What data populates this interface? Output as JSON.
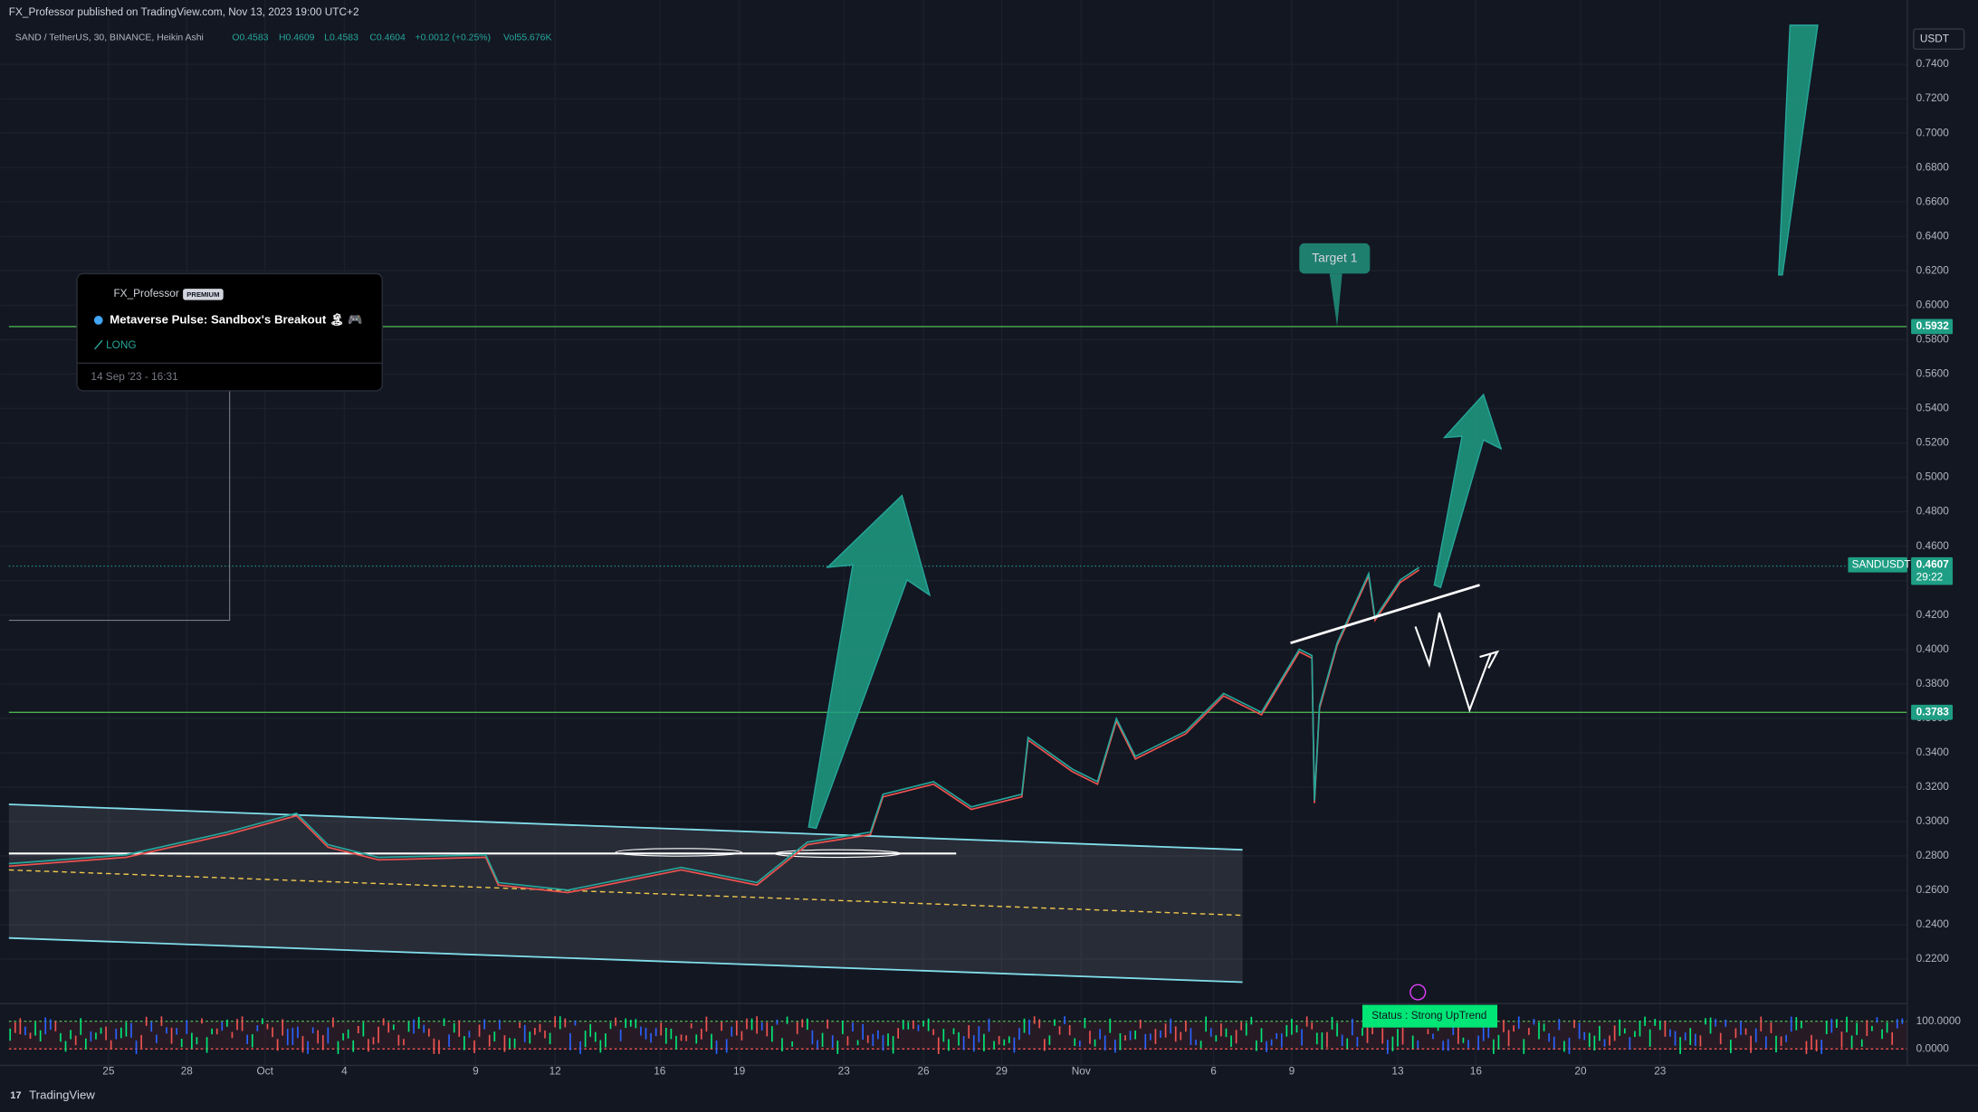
{
  "header": {
    "publisher": "FX_Professor published on TradingView.com, Nov 13, 2023 19:00 UTC+2"
  },
  "legend": {
    "symbol": "SAND / TetherUS, 30, BINANCE, Heikin Ashi",
    "open": "O0.4583",
    "high": "H0.4609",
    "low": "L0.4583",
    "close": "C0.4604",
    "change": "+0.0012 (+0.25%)",
    "volume": "Vol55.676K"
  },
  "price_axis": {
    "currency": "USDT",
    "labels": [
      "0.7400",
      "0.7200",
      "0.7000",
      "0.6800",
      "0.6600",
      "0.6400",
      "0.6200",
      "0.6000",
      "0.5800",
      "0.5600",
      "0.5400",
      "0.5200",
      "0.5000",
      "0.4800",
      "0.4600",
      "0.4400",
      "0.4200",
      "0.4000",
      "0.3800",
      "0.3600",
      "0.3400",
      "0.3200",
      "0.3000",
      "0.2800",
      "0.2600",
      "0.2400",
      "0.2200"
    ]
  },
  "price_tags": {
    "upper_level": "0.5932",
    "lower_level": "0.3783",
    "symbol": "SANDUSDT",
    "last_price": "0.4607",
    "countdown": "29:22"
  },
  "oscillator_axis": {
    "top": "100.0000",
    "bottom": "0.0000"
  },
  "time_axis": {
    "labels": [
      "25",
      "28",
      "Oct",
      "4",
      "9",
      "12",
      "16",
      "19",
      "23",
      "26",
      "29",
      "Nov",
      "6",
      "9",
      "13",
      "16",
      "20",
      "23"
    ]
  },
  "idea_card": {
    "author": "FX_Professor",
    "badge": "PREMIUM",
    "title": "Metaverse Pulse:  Sandbox's Breakout 🏝 🎮",
    "direction": "LONG",
    "date": "14 Sep '23 - 16:31"
  },
  "annotations": {
    "target": "Target 1",
    "status": "Status :  Strong UpTrend"
  },
  "footer": {
    "brand": "TradingView"
  }
}
